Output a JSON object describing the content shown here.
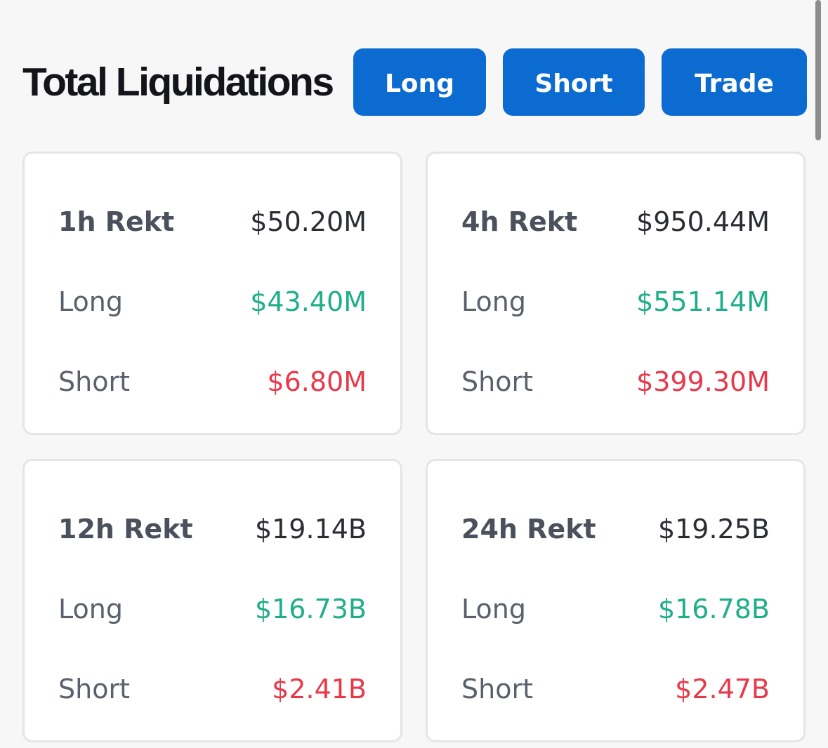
{
  "header": {
    "title": "Total Liquidations",
    "buttons": {
      "long_label": "Long",
      "short_label": "Short",
      "trade_label": "Trade"
    }
  },
  "colors": {
    "button_bg": "#0b6bd0",
    "long": "#1fae8a",
    "short": "#e8394a",
    "background": "#f7f7f7"
  },
  "cards": [
    {
      "period_label": "1h Rekt",
      "total": "$50.20M",
      "long_label": "Long",
      "long_value": "$43.40M",
      "short_label": "Short",
      "short_value": "$6.80M"
    },
    {
      "period_label": "4h Rekt",
      "total": "$950.44M",
      "long_label": "Long",
      "long_value": "$551.14M",
      "short_label": "Short",
      "short_value": "$399.30M"
    },
    {
      "period_label": "12h Rekt",
      "total": "$19.14B",
      "long_label": "Long",
      "long_value": "$16.73B",
      "short_label": "Short",
      "short_value": "$2.41B"
    },
    {
      "period_label": "24h Rekt",
      "total": "$19.25B",
      "long_label": "Long",
      "long_value": "$16.78B",
      "short_label": "Short",
      "short_value": "$2.47B"
    }
  ]
}
